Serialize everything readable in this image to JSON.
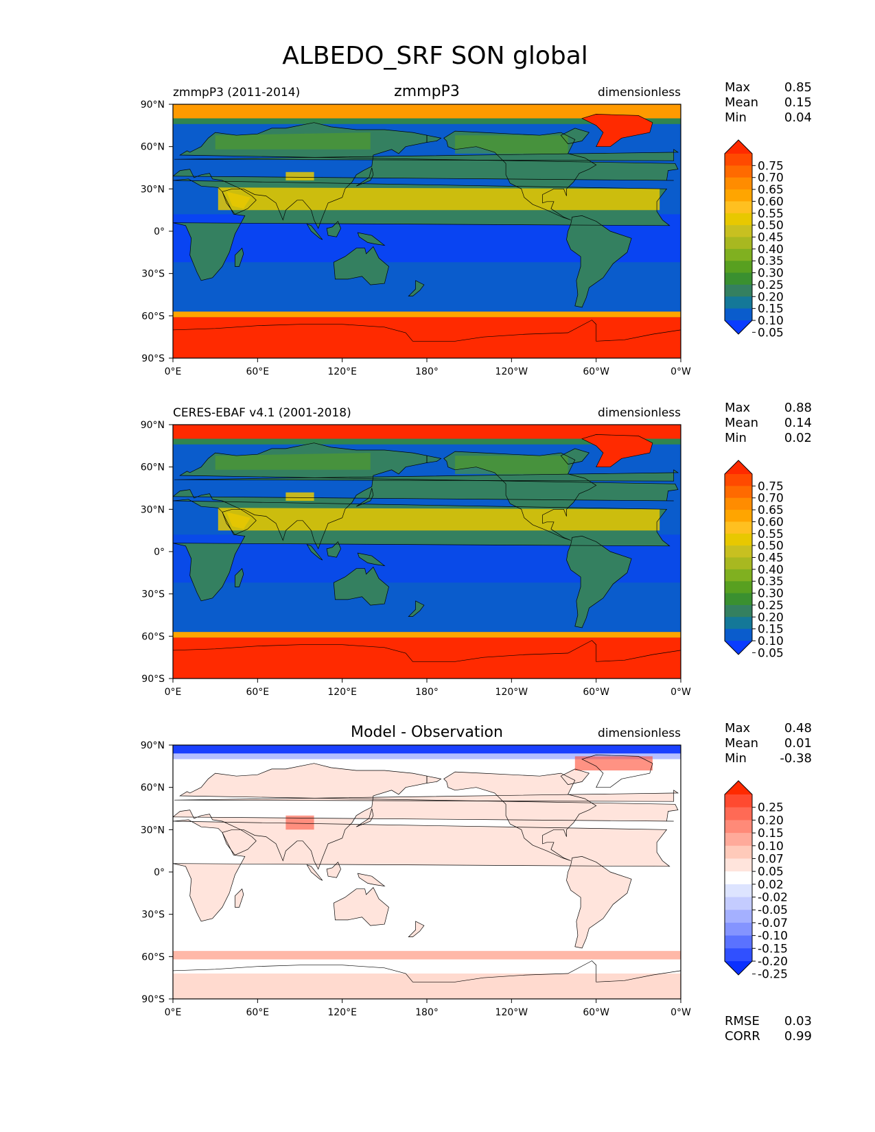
{
  "title": "ALBEDO_SRF SON global",
  "lat_ticks": [
    "90°N",
    "60°N",
    "30°N",
    "0°",
    "30°S",
    "60°S",
    "90°S"
  ],
  "lon_ticks": [
    "0°E",
    "60°E",
    "120°E",
    "180°",
    "120°W",
    "60°W",
    "0°W"
  ],
  "panels": [
    {
      "left_title": "zmmpP3 (2011-2014)",
      "center_title": "zmmpP3",
      "right_title": "dimensionless",
      "stats": [
        {
          "label": "Max",
          "value": "0.85"
        },
        {
          "label": "Mean",
          "value": "0.15"
        },
        {
          "label": "Min",
          "value": "0.04"
        }
      ],
      "colorbar": {
        "labels": [
          "0.75",
          "0.70",
          "0.65",
          "0.60",
          "0.55",
          "0.50",
          "0.45",
          "0.40",
          "0.35",
          "0.30",
          "0.25",
          "0.20",
          "0.15",
          "0.10",
          "0.05"
        ],
        "colors": [
          "#ff2a00",
          "#ff4a00",
          "#ff6a00",
          "#ff8c00",
          "#ffa500",
          "#ffc020",
          "#e8c800",
          "#c8c020",
          "#a8b820",
          "#80b020",
          "#58a020",
          "#3a9030",
          "#348060",
          "#147898",
          "#0a5ccc",
          "#0a3cff"
        ]
      },
      "bottom_stats": []
    },
    {
      "left_title": "CERES-EBAF v4.1 (2001-2018)",
      "center_title": "",
      "right_title": "dimensionless",
      "stats": [
        {
          "label": "Max",
          "value": "0.88"
        },
        {
          "label": "Mean",
          "value": "0.14"
        },
        {
          "label": "Min",
          "value": "0.02"
        }
      ],
      "colorbar": {
        "labels": [
          "0.75",
          "0.70",
          "0.65",
          "0.60",
          "0.55",
          "0.50",
          "0.45",
          "0.40",
          "0.35",
          "0.30",
          "0.25",
          "0.20",
          "0.15",
          "0.10",
          "0.05"
        ],
        "colors": [
          "#ff2a00",
          "#ff4a00",
          "#ff6a00",
          "#ff8c00",
          "#ffa500",
          "#ffc020",
          "#e8c800",
          "#c8c020",
          "#a8b820",
          "#80b020",
          "#58a020",
          "#3a9030",
          "#348060",
          "#147898",
          "#0a5ccc",
          "#0a3cff"
        ]
      },
      "bottom_stats": []
    },
    {
      "left_title": "",
      "center_title": "Model - Observation",
      "right_title": "dimensionless",
      "stats": [
        {
          "label": "Max",
          "value": "0.48"
        },
        {
          "label": "Mean",
          "value": "0.01"
        },
        {
          "label": "Min",
          "value": "-0.38"
        }
      ],
      "colorbar": {
        "labels": [
          "0.25",
          "0.20",
          "0.15",
          "0.10",
          "0.07",
          "0.05",
          "0.02",
          "-0.02",
          "-0.05",
          "-0.07",
          "-0.10",
          "-0.15",
          "-0.20",
          "-0.25"
        ],
        "colors": [
          "#ff2a00",
          "#ff4a30",
          "#ff6a55",
          "#ff8a78",
          "#ffaa9a",
          "#ffcaba",
          "#ffe4dc",
          "#ffffff",
          "#dde4ff",
          "#c4ccff",
          "#a4b0ff",
          "#8494ff",
          "#5a72ff",
          "#3050ff",
          "#0a30ff"
        ]
      },
      "bottom_stats": [
        {
          "label": "RMSE",
          "value": "0.03"
        },
        {
          "label": "CORR",
          "value": "0.99"
        }
      ]
    }
  ],
  "colors": {
    "ocean": "#0a5ccc",
    "ocean_tropics": "#0a3cff",
    "land": "#348060",
    "land_green": "#58a020",
    "desert": "#e8c800",
    "ice": "#ff2a00",
    "diff_background": "#ffffff",
    "diff_positive": "#ffb8a8",
    "diff_negative": "#1a40ff"
  },
  "chart_data": [
    {
      "type": "heatmap",
      "title": "zmmpP3",
      "subtitle": "zmmpP3 (2011-2014)",
      "units": "dimensionless",
      "xlim": [
        0,
        360
      ],
      "ylim": [
        -90,
        90
      ],
      "stats": {
        "max": 0.85,
        "mean": 0.15,
        "min": 0.04
      },
      "levels": [
        0.05,
        0.1,
        0.15,
        0.2,
        0.25,
        0.3,
        0.35,
        0.4,
        0.45,
        0.5,
        0.55,
        0.6,
        0.65,
        0.7,
        0.75
      ],
      "regions": {
        "ocean": 0.07,
        "tropical_ocean": 0.05,
        "land": 0.15,
        "sahara_arabia": 0.45,
        "greenland": 0.8,
        "antarctica": 0.8,
        "southern_sea_ice": 0.7,
        "arctic_sea_ice": 0.6
      }
    },
    {
      "type": "heatmap",
      "title": "",
      "subtitle": "CERES-EBAF v4.1 (2001-2018)",
      "units": "dimensionless",
      "xlim": [
        0,
        360
      ],
      "ylim": [
        -90,
        90
      ],
      "stats": {
        "max": 0.88,
        "mean": 0.14,
        "min": 0.02
      },
      "levels": [
        0.05,
        0.1,
        0.15,
        0.2,
        0.25,
        0.3,
        0.35,
        0.4,
        0.45,
        0.5,
        0.55,
        0.6,
        0.65,
        0.7,
        0.75
      ],
      "regions": {
        "ocean": 0.07,
        "tropical_ocean": 0.05,
        "land": 0.15,
        "sahara_arabia": 0.45,
        "greenland": 0.8,
        "antarctica": 0.8,
        "southern_sea_ice": 0.7,
        "arctic_sea_ice": 0.75
      }
    },
    {
      "type": "heatmap",
      "title": "Model - Observation",
      "units": "dimensionless",
      "xlim": [
        0,
        360
      ],
      "ylim": [
        -90,
        90
      ],
      "stats": {
        "max": 0.48,
        "mean": 0.01,
        "min": -0.38,
        "rmse": 0.03,
        "corr": 0.99
      },
      "levels": [
        -0.25,
        -0.2,
        -0.15,
        -0.1,
        -0.07,
        -0.05,
        -0.02,
        0.02,
        0.05,
        0.07,
        0.1,
        0.15,
        0.2,
        0.25
      ],
      "regions": {
        "ocean": 0.0,
        "land": 0.03,
        "tibet": 0.15,
        "arctic_ocean": -0.25,
        "greenland_edge": 0.2,
        "southern_ocean_band": 0.08
      }
    }
  ]
}
